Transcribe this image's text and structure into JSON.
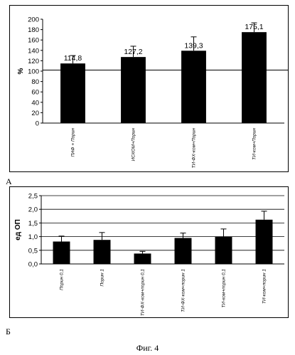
{
  "figure": {
    "caption": "Фиг. 4",
    "panel_a_letter": "А",
    "panel_b_letter": "Б"
  },
  "chart_data": [
    {
      "type": "bar",
      "title": "",
      "xlabel": "",
      "ylabel": "%",
      "ylim": [
        0,
        200
      ],
      "yticks": [
        0,
        20,
        40,
        60,
        80,
        100,
        120,
        140,
        160,
        180,
        200
      ],
      "ytick_labels": [
        "0",
        "20",
        "40",
        "60",
        "80",
        "100",
        "120",
        "140",
        "160",
        "180",
        "200"
      ],
      "reference_line": 102,
      "grid": false,
      "categories": [
        "ПАФ + Порин",
        "ИСКОМ+Порин",
        "ТИ-ФХ-ком+Порин",
        "ТИ-ком+Порин"
      ],
      "values": [
        114.8,
        127.2,
        139.3,
        175.1
      ],
      "value_labels": [
        "114,8",
        "127,2",
        "139,3",
        "175,1"
      ],
      "error_upper": [
        130,
        148,
        166,
        193
      ],
      "bar_color": "#000000"
    },
    {
      "type": "bar",
      "title": "",
      "xlabel": "",
      "ylabel": "ед ОП",
      "ylim": [
        0,
        2.5
      ],
      "yticks": [
        0,
        0.5,
        1.0,
        1.5,
        2.0,
        2.5
      ],
      "ytick_labels": [
        "0,0",
        "0,5",
        "1,0",
        "1,5",
        "2,0",
        "2,5"
      ],
      "grid": true,
      "categories": [
        "Порин 0,1",
        "Порин 1",
        "ТИ-ФХ-ком+порин 0,1",
        "ТИ-ФХ-ком+порин 1",
        "ТИ-ком+порин 0,1",
        "ТИ-ком+порин 1"
      ],
      "values": [
        0.82,
        0.88,
        0.38,
        0.95,
        1.0,
        1.62
      ],
      "error_upper": [
        1.02,
        1.15,
        0.46,
        1.13,
        1.28,
        1.93
      ],
      "bar_color": "#000000"
    }
  ]
}
